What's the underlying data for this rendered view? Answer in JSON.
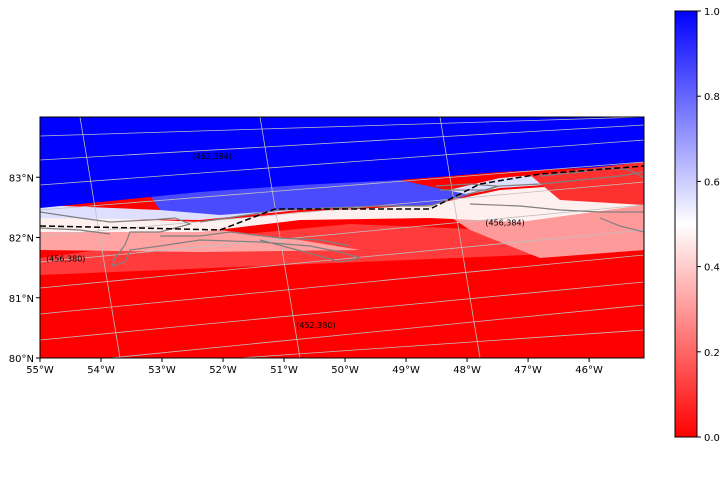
{
  "map": {
    "projection": "polar-stereographic",
    "extent": {
      "lon_min": -55,
      "lon_max": -45.1,
      "lat_min": 80,
      "lat_max": 84
    }
  },
  "x_ticks": [
    {
      "lon": -55,
      "label": "55°W"
    },
    {
      "lon": -54,
      "label": "54°W"
    },
    {
      "lon": -53,
      "label": "53°W"
    },
    {
      "lon": -52,
      "label": "52°W"
    },
    {
      "lon": -51,
      "label": "51°W"
    },
    {
      "lon": -50,
      "label": "50°W"
    },
    {
      "lon": -49,
      "label": "49°W"
    },
    {
      "lon": -48,
      "label": "48°W"
    },
    {
      "lon": -47,
      "label": "47°W"
    },
    {
      "lon": -46,
      "label": "46°W"
    }
  ],
  "y_ticks": [
    {
      "lat": 80,
      "label": "80°N"
    },
    {
      "lat": 81,
      "label": "81°N"
    },
    {
      "lat": 82,
      "label": "82°N"
    },
    {
      "lat": 83,
      "label": "83°N"
    }
  ],
  "cell_labels": [
    {
      "text": "(462,384)",
      "lon": -52.5,
      "lat": 83.3
    },
    {
      "text": "(456,380)",
      "lon": -54.9,
      "lat": 81.6
    },
    {
      "text": "(456,384)",
      "lon": -47.7,
      "lat": 82.2
    },
    {
      "text": "(452,380)",
      "lon": -50.8,
      "lat": 80.5
    }
  ],
  "colorbar": {
    "min": 0.0,
    "max": 1.0,
    "ticks": [
      "0.0",
      "0.2",
      "0.4",
      "0.6",
      "0.8",
      "1.0"
    ],
    "colormap": "bwr_r",
    "colors": {
      "low": "#ff0000",
      "mid": "#ffffff",
      "high": "#0000ff"
    }
  },
  "styles": {
    "coastline_color": "#808080",
    "gridline_color": "#bfbfbf",
    "boundary_color": "#000000"
  }
}
